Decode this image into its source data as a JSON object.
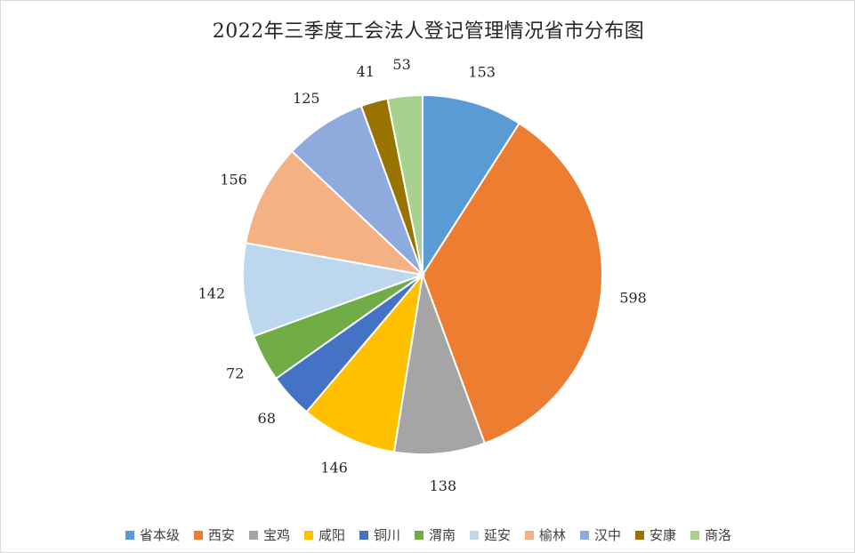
{
  "chart_data": {
    "type": "pie",
    "title": "2022年三季度工会法人登记管理情况省市分布图",
    "categories": [
      "省本级",
      "西安",
      "宝鸡",
      "咸阳",
      "铜川",
      "渭南",
      "延安",
      "榆林",
      "汉中",
      "安康",
      "商洛"
    ],
    "values": [
      153,
      598,
      138,
      146,
      68,
      72,
      142,
      156,
      125,
      41,
      53
    ],
    "colors": [
      "#5b9bd5",
      "#ed7d31",
      "#a5a5a5",
      "#ffc000",
      "#4472c4",
      "#70ad47",
      "#bdd7ee",
      "#f4b183",
      "#8faadc",
      "#997300",
      "#a9d18e"
    ],
    "legend_position": "bottom",
    "start_angle": "12 o'clock",
    "direction": "clockwise"
  }
}
